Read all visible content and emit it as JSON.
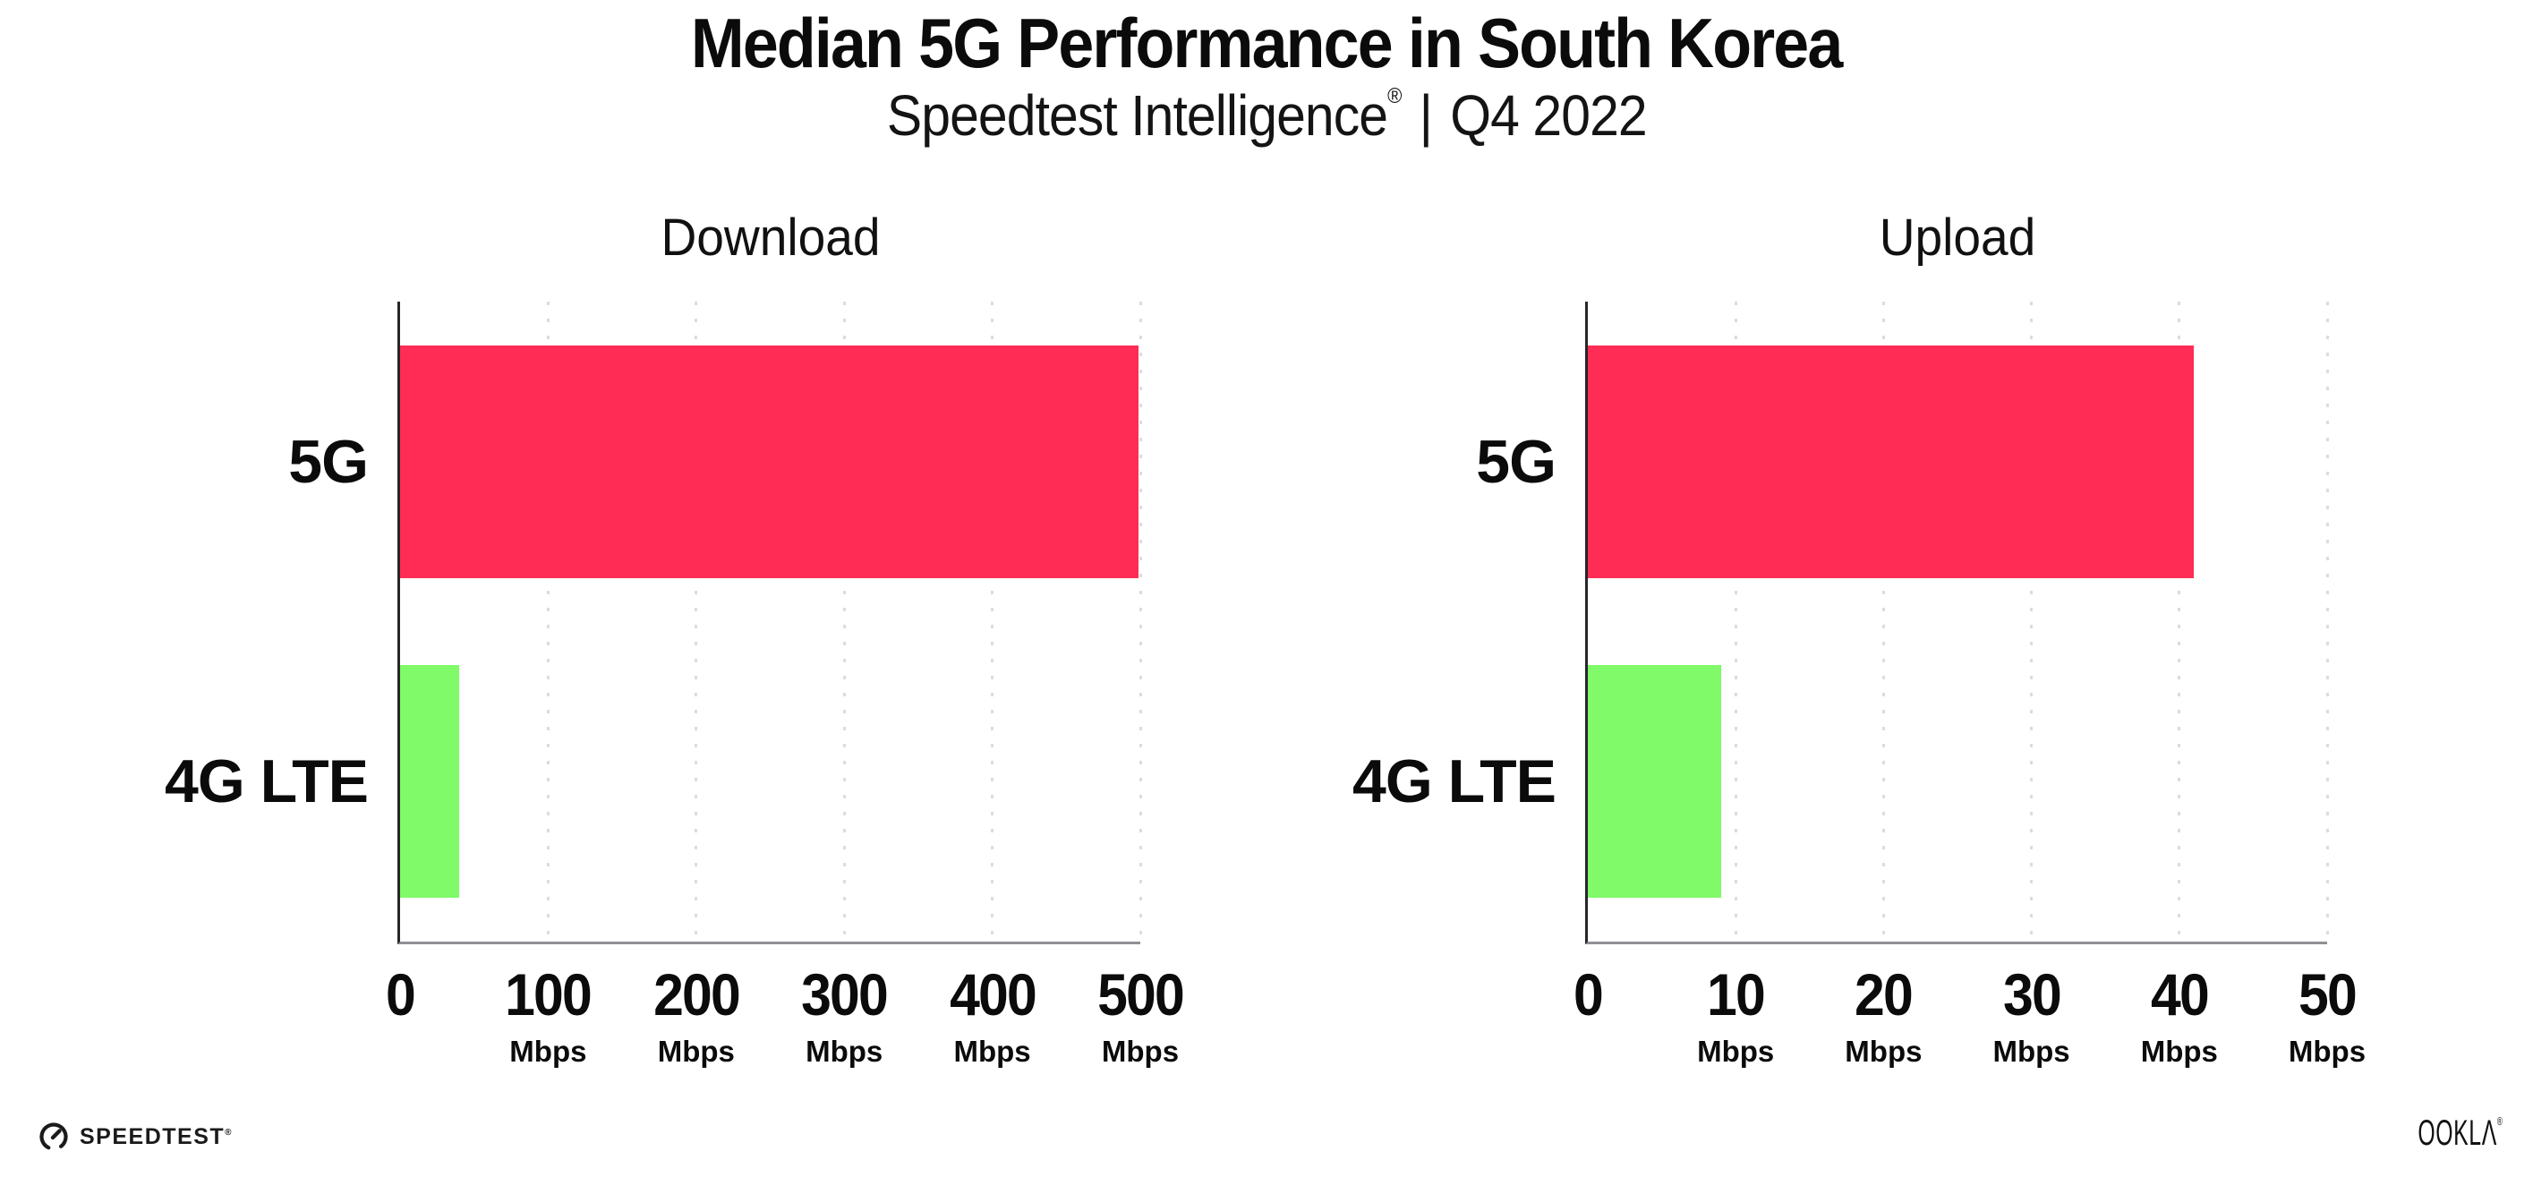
{
  "header": {
    "title": "Median 5G Performance in South Korea",
    "subtitle_brand": "Speedtest Intelligence",
    "subtitle_reg_mark": "®",
    "subtitle_separator": "|",
    "subtitle_period": "Q4 2022"
  },
  "colors": {
    "bar_5g": "#FF2D55",
    "bar_4g_lte": "#80FA69",
    "gridline": "#DBDBE7",
    "y_axis": "#26262B",
    "x_axis": "#909096",
    "text": "#0B0B0B",
    "background": "#FFFFFF"
  },
  "chart_data": [
    {
      "type": "bar",
      "orientation": "horizontal",
      "title": "Download",
      "categories": [
        "5G",
        "4G LTE"
      ],
      "values": [
        499,
        40
      ],
      "value_unit": "Mbps",
      "xlim": [
        0,
        500
      ],
      "xticks": [
        0,
        100,
        200,
        300,
        400,
        500
      ],
      "xtick_unit": "Mbps",
      "unit_shown_on_zero_tick": false,
      "grid": "vertical-dotted",
      "legend": "none",
      "bar_colors": [
        "#FF2D55",
        "#80FA69"
      ]
    },
    {
      "type": "bar",
      "orientation": "horizontal",
      "title": "Upload",
      "categories": [
        "5G",
        "4G LTE"
      ],
      "values": [
        41,
        9
      ],
      "value_unit": "Mbps",
      "xlim": [
        0,
        50
      ],
      "xticks": [
        0,
        10,
        20,
        30,
        40,
        50
      ],
      "xtick_unit": "Mbps",
      "unit_shown_on_zero_tick": false,
      "grid": "vertical-dotted",
      "legend": "none",
      "bar_colors": [
        "#FF2D55",
        "#80FA69"
      ]
    }
  ],
  "footer": {
    "speedtest_logo_text": "SPEEDTEST",
    "speedtest_reg_mark": "®",
    "ookla_logo_text": "OOKLΛ",
    "ookla_reg_mark": "®"
  }
}
